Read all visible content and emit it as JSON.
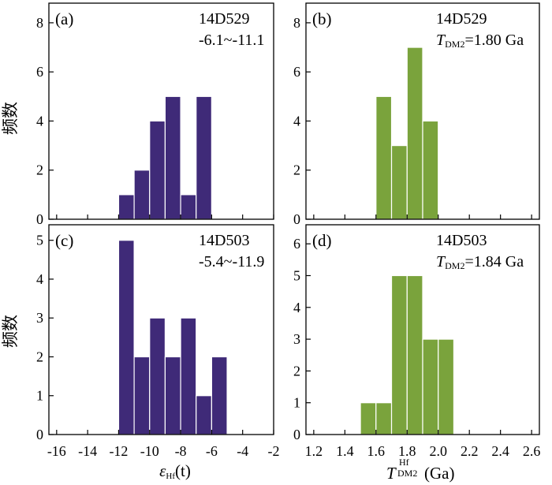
{
  "figure": {
    "ylabel": "频数",
    "xlabel_left": {
      "main": "ε",
      "sub": "Hf",
      "tail": "(t)"
    },
    "xlabel_right": {
      "main": "T",
      "sup": "Hf",
      "sub": "DM2",
      "tail": "(Ga)"
    }
  },
  "colors": {
    "purple": "#3f2a78",
    "green": "#7aa33c",
    "bar_edge": "#ffffff",
    "frame": "#000000"
  },
  "chart_data": [
    {
      "type": "bar",
      "panel": "(a)",
      "sample": "14D529",
      "note": "-6.1~-11.1",
      "color": "purple",
      "bin_width": 1,
      "bins": [
        -12,
        -11,
        -10,
        -9,
        -8,
        -7
      ],
      "values": [
        1,
        2,
        4,
        5,
        1,
        5
      ],
      "xlim": [
        -16.5,
        -2
      ],
      "ylim": [
        0,
        8.8
      ],
      "yticks": [
        0,
        2,
        4,
        6,
        8
      ]
    },
    {
      "type": "bar",
      "panel": "(b)",
      "sample": "14D529",
      "note": {
        "T": "T",
        "sub": "DM2",
        "value": "=1.80 Ga"
      },
      "color": "green",
      "bin_width": 0.1,
      "bins": [
        1.6,
        1.7,
        1.8,
        1.9
      ],
      "values": [
        5,
        3,
        7,
        4
      ],
      "xlim": [
        1.15,
        2.65
      ],
      "ylim": [
        0,
        8.8
      ],
      "yticks": [
        0,
        2,
        4,
        6,
        8
      ]
    },
    {
      "type": "bar",
      "panel": "(c)",
      "sample": "14D503",
      "note": "-5.4~-11.9",
      "color": "purple",
      "bin_width": 1,
      "bins": [
        -12,
        -11,
        -10,
        -9,
        -8,
        -7,
        -6
      ],
      "values": [
        5,
        2,
        3,
        2,
        3,
        1,
        2
      ],
      "xlim": [
        -16.5,
        -2
      ],
      "ylim": [
        0,
        5.4
      ],
      "yticks": [
        0,
        1,
        2,
        3,
        4,
        5
      ],
      "xticks": [
        "-16",
        "-14",
        "-12",
        "-10",
        "-8",
        "-6",
        "-4",
        "-2"
      ]
    },
    {
      "type": "bar",
      "panel": "(d)",
      "sample": "14D503",
      "note": {
        "T": "T",
        "sub": "DM2",
        "value": "=1.84 Ga"
      },
      "color": "green",
      "bin_width": 0.1,
      "bins": [
        1.5,
        1.6,
        1.7,
        1.8,
        1.9,
        2.0
      ],
      "values": [
        1,
        1,
        5,
        5,
        3,
        3
      ],
      "xlim": [
        1.15,
        2.65
      ],
      "ylim": [
        0,
        6.6
      ],
      "yticks": [
        0,
        1,
        2,
        3,
        4,
        5,
        6
      ],
      "xticks": [
        "1.2",
        "1.4",
        "1.6",
        "1.8",
        "2.0",
        "2.2",
        "2.4",
        "2.6"
      ]
    }
  ]
}
